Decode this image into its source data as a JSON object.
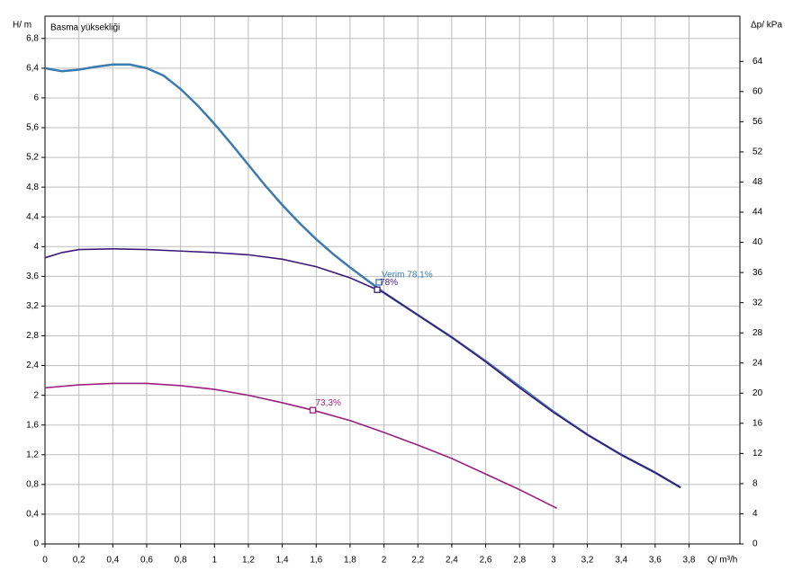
{
  "chart_data": {
    "type": "line",
    "title": "Basma yüksekliği",
    "ylabel": "H/ m",
    "y2label": "Δp/ kPa",
    "xlabel": "Q/ m³/h",
    "xlim": [
      0,
      4.1
    ],
    "ylim": [
      0,
      7.1
    ],
    "y2lim": [
      0,
      70
    ],
    "grid": true,
    "xticks": [
      0,
      {
        "value": 0.2,
        "label": "0,2"
      },
      {
        "value": 0.4,
        "label": "0,4"
      },
      {
        "value": 0.6,
        "label": "0,6"
      },
      {
        "value": 0.8,
        "label": "0,8"
      },
      1,
      {
        "value": 1.2,
        "label": "1,2"
      },
      {
        "value": 1.4,
        "label": "1,4"
      },
      {
        "value": 1.6,
        "label": "1,6"
      },
      {
        "value": 1.8,
        "label": "1,8"
      },
      2,
      {
        "value": 2.2,
        "label": "2,2"
      },
      {
        "value": 2.4,
        "label": "2,4"
      },
      {
        "value": 2.6,
        "label": "2,6"
      },
      {
        "value": 2.8,
        "label": "2,8"
      },
      3,
      {
        "value": 3.2,
        "label": "3,2"
      },
      {
        "value": 3.4,
        "label": "3,4"
      },
      {
        "value": 3.6,
        "label": "3,6"
      },
      {
        "value": 3.8,
        "label": "3,8"
      }
    ],
    "yticks": [
      0,
      {
        "value": 0.4,
        "label": "0,4"
      },
      {
        "value": 0.8,
        "label": "0,8"
      },
      {
        "value": 1.2,
        "label": "1,2"
      },
      {
        "value": 1.6,
        "label": "1,6"
      },
      2,
      {
        "value": 2.4,
        "label": "2,4"
      },
      {
        "value": 2.8,
        "label": "2,8"
      },
      {
        "value": 3.2,
        "label": "3,2"
      },
      {
        "value": 3.6,
        "label": "3,6"
      },
      4,
      {
        "value": 4.4,
        "label": "4,4"
      },
      {
        "value": 4.8,
        "label": "4,8"
      },
      {
        "value": 5.2,
        "label": "5,2"
      },
      {
        "value": 5.6,
        "label": "5,6"
      },
      6,
      {
        "value": 6.4,
        "label": "6,4"
      },
      {
        "value": 6.8,
        "label": "6,8"
      }
    ],
    "y2ticks": [
      0,
      4,
      8,
      12,
      16,
      20,
      24,
      28,
      32,
      36,
      40,
      44,
      48,
      52,
      56,
      60,
      64
    ],
    "series": [
      {
        "color": "#3b7bb0",
        "x": [
          0,
          0.1,
          0.2,
          0.3,
          0.4,
          0.5,
          0.6,
          0.7,
          0.8,
          0.9,
          1.0,
          1.1,
          1.2,
          1.3,
          1.4,
          1.5,
          1.6,
          1.7,
          1.8,
          1.9,
          2.0,
          2.2,
          2.4,
          2.6,
          2.8,
          3.0,
          3.2,
          3.4,
          3.6,
          3.75
        ],
        "values": [
          6.4,
          6.36,
          6.38,
          6.42,
          6.45,
          6.45,
          6.4,
          6.3,
          6.12,
          5.9,
          5.65,
          5.38,
          5.1,
          4.82,
          4.56,
          4.32,
          4.1,
          3.9,
          3.72,
          3.55,
          3.38,
          3.08,
          2.78,
          2.46,
          2.12,
          1.78,
          1.47,
          1.2,
          0.96,
          0.76
        ]
      },
      {
        "color": "#3d1a78",
        "x": [
          0,
          0.1,
          0.2,
          0.4,
          0.6,
          0.8,
          1.0,
          1.2,
          1.4,
          1.6,
          1.8,
          1.96,
          2.0,
          2.2,
          2.4,
          2.6,
          2.8,
          3.0,
          3.2,
          3.4,
          3.6,
          3.75
        ],
        "values": [
          3.85,
          3.92,
          3.96,
          3.97,
          3.96,
          3.94,
          3.92,
          3.89,
          3.83,
          3.73,
          3.58,
          3.42,
          3.38,
          3.08,
          2.78,
          2.45,
          2.1,
          1.77,
          1.47,
          1.2,
          0.96,
          0.76
        ]
      },
      {
        "color": "#9b1f7f",
        "x": [
          0,
          0.2,
          0.4,
          0.6,
          0.8,
          1.0,
          1.2,
          1.4,
          1.58,
          1.8,
          2.0,
          2.2,
          2.4,
          2.6,
          2.8,
          3.02
        ],
        "values": [
          2.1,
          2.14,
          2.16,
          2.16,
          2.13,
          2.08,
          2.0,
          1.9,
          1.8,
          1.66,
          1.5,
          1.33,
          1.15,
          0.94,
          0.73,
          0.48
        ]
      }
    ],
    "annotations": [
      {
        "text": "Verim 78,1%",
        "x": 1.97,
        "y": 3.52,
        "color": "#3b7bb0"
      },
      {
        "text": "78%",
        "x": 1.96,
        "y": 3.42,
        "color": "#3d1a78"
      },
      {
        "text": "73,3%",
        "x": 1.58,
        "y": 1.8,
        "color": "#9b1f7f"
      }
    ]
  }
}
